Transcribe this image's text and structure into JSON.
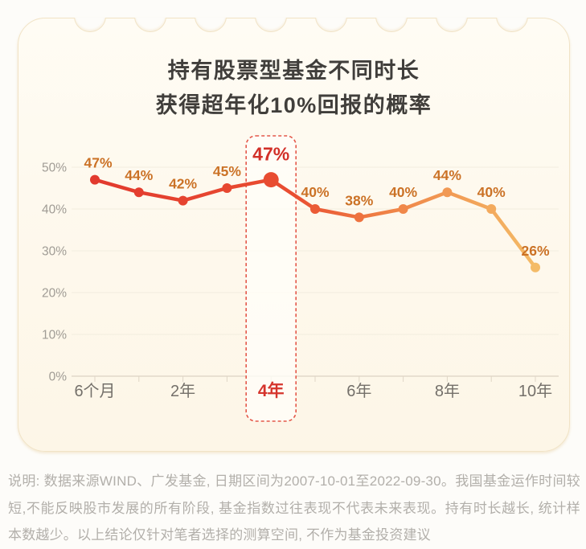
{
  "title": {
    "line1": "持有股票型基金不同时长",
    "line2": "获得超年化10%回报的概率"
  },
  "chart_data": {
    "type": "line",
    "title": "持有股票型基金不同时长获得超年化10%回报的概率",
    "values": [
      47,
      44,
      42,
      45,
      47,
      40,
      38,
      40,
      44,
      40,
      26
    ],
    "point_labels": [
      "47%",
      "44%",
      "42%",
      "45%",
      "47%",
      "40%",
      "38%",
      "40%",
      "44%",
      "40%",
      "26%"
    ],
    "highlight_index": 4,
    "highlight_value_label": "47%",
    "highlight_x_label": "4年",
    "x_labels": [
      "6个月",
      "2年",
      "4年",
      "6年",
      "8年",
      "10年"
    ],
    "x_label_indices": [
      0,
      2,
      4,
      6,
      8,
      10
    ],
    "y_ticks": [
      "0%",
      "10%",
      "20%",
      "30%",
      "40%",
      "50%"
    ],
    "ylim": [
      0,
      50
    ],
    "grid": "horizontal-faint",
    "legend": "none"
  },
  "footer": {
    "text": "说明: 数据来源WIND、广发基金, 日期区间为2007-10-01至2022-09-30。我国基金运作时间较短,不能反映股市发展的所有阶段, 基金指数过往表现不代表未来表现。持有时长越长, 统计样本数越少。以上结论仅针对笔者选择的测算空间, 不作为基金投资建议"
  },
  "colors": {
    "card_background": "#FEF9EE",
    "accent_red": "#D5342C",
    "point_label_orange": "#CB7226",
    "highlight_label_red": "#D23028",
    "highlight_box_border": "#E4584A",
    "axis_label_gray": "#A09C95",
    "x_label_gray": "#74706A",
    "axis_line": "#E2D9C9",
    "grid_line": "#F3EDDF",
    "line_gradient_stops": [
      {
        "offset": 0.0,
        "color": "#E23A2E"
      },
      {
        "offset": 0.45,
        "color": "#E94E31"
      },
      {
        "offset": 0.65,
        "color": "#EF8045"
      },
      {
        "offset": 1.0,
        "color": "#F4BB67"
      }
    ]
  }
}
